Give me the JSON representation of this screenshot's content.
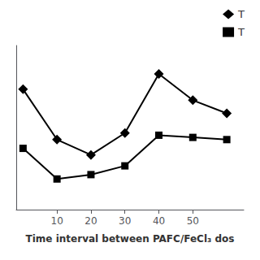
{
  "chart_data": {
    "type": "line",
    "x": [
      0,
      10,
      20,
      30,
      40,
      50,
      60
    ],
    "series": [
      {
        "name": "T",
        "color": "#000000",
        "marker": "diamond",
        "values": [
          85,
          62,
          55,
          65,
          92,
          80,
          74
        ]
      },
      {
        "name": "T",
        "color": "#000000",
        "marker": "square",
        "values": [
          58,
          44,
          46,
          50,
          64,
          63,
          62
        ]
      }
    ],
    "xlabel": "Time interval between PAFC/FeCl₃ dos",
    "xlim": [
      -2,
      65
    ],
    "ylim": [
      30,
      105
    ],
    "xticks": [
      10,
      20,
      30,
      40,
      50
    ],
    "tick_labels": "x",
    "grid": false,
    "legend": "upper right"
  }
}
